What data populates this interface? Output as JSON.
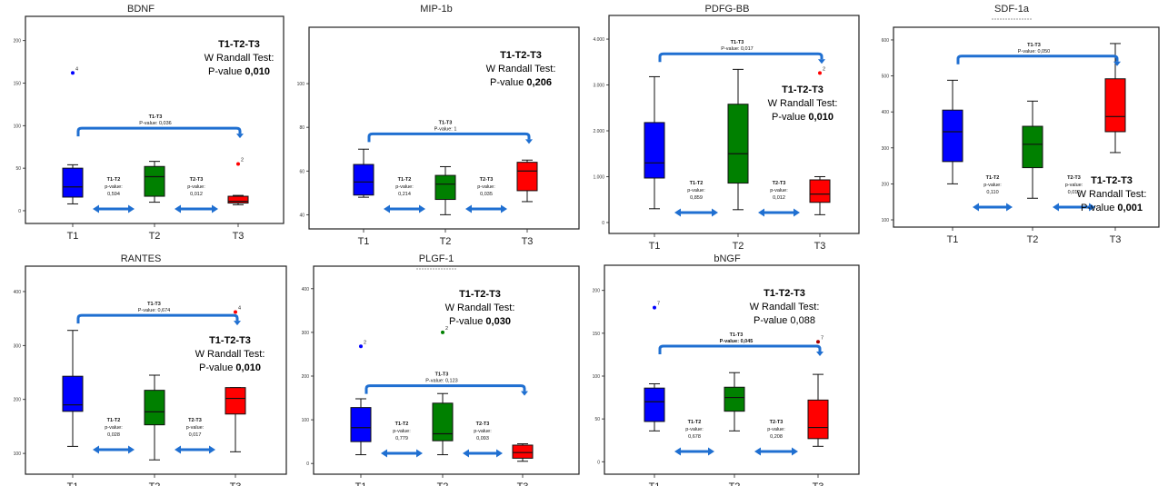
{
  "chart_data": [
    {
      "type": "box",
      "title": "BDNF",
      "title_underline": false,
      "categories": [
        "T1",
        "T2",
        "T3"
      ],
      "ylim": [
        -15,
        205
      ],
      "yticks": [
        0,
        50,
        100,
        150,
        200
      ],
      "series": [
        {
          "category": "T1",
          "color": "#0000ff",
          "min": 8,
          "q1": 16,
          "median": 28,
          "q3": 50,
          "max": 54
        },
        {
          "category": "T2",
          "color": "#008000",
          "min": 10,
          "q1": 17,
          "median": 40,
          "q3": 52,
          "max": 58
        },
        {
          "category": "T3",
          "color": "#ff0000",
          "min": 7,
          "q1": 9,
          "median": 11,
          "q3": 17,
          "max": 18
        }
      ],
      "outliers": [
        {
          "category": "T1",
          "value": 162,
          "label": "4",
          "color": "#0000ff"
        },
        {
          "category": "T3",
          "value": 55,
          "label": "2",
          "color": "#ff0000"
        }
      ],
      "bracket": {
        "label": "T1-T3",
        "pvalue": "P-value: 0,036",
        "bold": false,
        "y": 97
      },
      "pairs": [
        {
          "label": "T1-T2",
          "line1": "p-value:",
          "line2": "0,594"
        },
        {
          "label": "T2-T3",
          "line1": "p-value:",
          "line2": "0,012"
        }
      ],
      "test": {
        "line1": "T1-T2-T3",
        "line2": "W Randall Test:",
        "line3_prefix": "P-value ",
        "line3_value": "0,010",
        "pos": "top-right"
      }
    },
    {
      "type": "box",
      "title": "MIP-1b",
      "title_underline": false,
      "categories": [
        "T1",
        "T2",
        "T3"
      ],
      "ylim": [
        36,
        110
      ],
      "yticks": [
        40,
        60,
        80,
        100
      ],
      "series": [
        {
          "category": "T1",
          "color": "#0000ff",
          "min": 48,
          "q1": 49,
          "median": 55,
          "q3": 63,
          "max": 70
        },
        {
          "category": "T2",
          "color": "#008000",
          "min": 40,
          "q1": 47,
          "median": 54,
          "q3": 58,
          "max": 62
        },
        {
          "category": "T3",
          "color": "#ff0000",
          "min": 46,
          "q1": 51,
          "median": 60,
          "q3": 64,
          "max": 65
        }
      ],
      "outliers": [],
      "bracket": {
        "label": "T1-T3",
        "pvalue": "P-value: 1",
        "bold": false,
        "y": 77
      },
      "pairs": [
        {
          "label": "T1-T2",
          "line1": "p-value:",
          "line2": "0,214"
        },
        {
          "label": "T2-T3",
          "line1": "p-value:",
          "line2": "0,035"
        }
      ],
      "test": {
        "line1": "T1-T2-T3",
        "line2": "W Randall Test:",
        "line3_prefix": "P-value ",
        "line3_value": "0,206",
        "pos": "top-right"
      }
    },
    {
      "type": "box",
      "title": "PDFG-BB",
      "title_underline": false,
      "categories": [
        "T1",
        "T2",
        "T3"
      ],
      "ylim": [
        -100,
        4100
      ],
      "yticks": [
        0,
        1000,
        2000,
        3000,
        4000
      ],
      "ytick_labels": [
        "0",
        "1.000",
        "2.000",
        "3.000",
        "4.000"
      ],
      "series": [
        {
          "category": "T1",
          "color": "#0000ff",
          "min": 300,
          "q1": 970,
          "median": 1300,
          "q3": 2180,
          "max": 3180
        },
        {
          "category": "T2",
          "color": "#008000",
          "min": 280,
          "q1": 860,
          "median": 1500,
          "q3": 2580,
          "max": 3340
        },
        {
          "category": "T3",
          "color": "#ff0000",
          "min": 170,
          "q1": 440,
          "median": 620,
          "q3": 930,
          "max": 1000
        }
      ],
      "outliers": [
        {
          "category": "T3",
          "value": 3260,
          "label": "2",
          "color": "#ff0000"
        }
      ],
      "bracket": {
        "label": "T1-T3",
        "pvalue": "P-value: 0,017",
        "bold": false,
        "y": 3680
      },
      "pairs": [
        {
          "label": "T1-T2",
          "line1": "p-value:",
          "line2": "0,859"
        },
        {
          "label": "T2-T3",
          "line1": "p-value:",
          "line2": "0,012"
        }
      ],
      "test": {
        "line1": "T1-T2-T3",
        "line2": "W Randall Test:",
        "line3_prefix": "P-value ",
        "line3_value": "0,010",
        "pos": "middle-right"
      }
    },
    {
      "type": "box",
      "title": "SDF-1a",
      "title_underline": true,
      "categories": [
        "T1",
        "T2",
        "T3"
      ],
      "ylim": [
        95,
        610
      ],
      "yticks": [
        100,
        200,
        300,
        400,
        500,
        600
      ],
      "series": [
        {
          "category": "T1",
          "color": "#0000ff",
          "min": 200,
          "q1": 262,
          "median": 345,
          "q3": 405,
          "max": 488
        },
        {
          "category": "T2",
          "color": "#008000",
          "min": 160,
          "q1": 245,
          "median": 310,
          "q3": 360,
          "max": 430
        },
        {
          "category": "T3",
          "color": "#ff0000",
          "min": 287,
          "q1": 345,
          "median": 387,
          "q3": 492,
          "max": 590
        }
      ],
      "outliers": [],
      "bracket": {
        "label": "T1-T3",
        "pvalue": "P-value: 0,050",
        "bold": false,
        "y": 555
      },
      "pairs": [
        {
          "label": "T1-T2",
          "line1": "p-value:",
          "line2": "0,110"
        },
        {
          "label": "T2-T3",
          "line1": "p-value:",
          "line2": "0,012"
        }
      ],
      "test": {
        "line1": "T1-T2-T3",
        "line2": "W Randall Test:",
        "line3_prefix": "P-value ",
        "line3_value": "0,001",
        "pos": "bottom-right"
      }
    },
    {
      "type": "box",
      "title": "RANTES",
      "title_underline": false,
      "categories": [
        "T1",
        "T2",
        "T3"
      ],
      "ylim": [
        80,
        410
      ],
      "yticks": [
        100,
        200,
        300,
        400
      ],
      "series": [
        {
          "category": "T1",
          "color": "#0000ff",
          "min": 113,
          "q1": 178,
          "median": 190,
          "q3": 243,
          "max": 328
        },
        {
          "category": "T2",
          "color": "#008000",
          "min": 88,
          "q1": 153,
          "median": 177,
          "q3": 217,
          "max": 245
        },
        {
          "category": "T3",
          "color": "#ff0000",
          "min": 103,
          "q1": 173,
          "median": 202,
          "q3": 222,
          "max": 222
        }
      ],
      "outliers": [
        {
          "category": "T3",
          "value": 362,
          "label": "4",
          "color": "#ff0000"
        }
      ],
      "bracket": {
        "label": "T1-T3",
        "pvalue": "P-value: 0,674",
        "bold": false,
        "y": 356
      },
      "pairs": [
        {
          "label": "T1-T2",
          "line1": "p-value:",
          "line2": "0,028"
        },
        {
          "label": "T2-T3",
          "line1": "p-value:",
          "line2": "0,017"
        }
      ],
      "test": {
        "line1": "T1-T2-T3",
        "line2": "W Randall Test:",
        "line3_prefix": "P-value ",
        "line3_value": "0,010",
        "pos": "middle-right"
      }
    },
    {
      "type": "box",
      "title": "PLGF-1",
      "title_underline": true,
      "categories": [
        "T1",
        "T2",
        "T3"
      ],
      "ylim": [
        -10,
        410
      ],
      "yticks": [
        0,
        100,
        200,
        300,
        400
      ],
      "series": [
        {
          "category": "T1",
          "color": "#0000ff",
          "min": 20,
          "q1": 50,
          "median": 82,
          "q3": 128,
          "max": 148
        },
        {
          "category": "T2",
          "color": "#008000",
          "min": 20,
          "q1": 52,
          "median": 68,
          "q3": 138,
          "max": 160
        },
        {
          "category": "T3",
          "color": "#ff0000",
          "min": 5,
          "q1": 12,
          "median": 25,
          "q3": 42,
          "max": 45
        }
      ],
      "outliers": [
        {
          "category": "T1",
          "value": 268,
          "label": "2",
          "color": "#0000ff"
        },
        {
          "category": "T2",
          "value": 300,
          "label": "2",
          "color": "#008000"
        }
      ],
      "bracket": {
        "label": "T1-T3",
        "pvalue": "P-value: 0,123",
        "bold": false,
        "y": 178
      },
      "pairs": [
        {
          "label": "T1-T2",
          "line1": "p-value:",
          "line2": "0,779"
        },
        {
          "label": "T2-T3",
          "line1": "p-value:",
          "line2": "0,093"
        }
      ],
      "test": {
        "line1": "T1-T2-T3",
        "line2": "W Randall Test:",
        "line3_prefix": "P-value ",
        "line3_value": "0,030",
        "pos": "top-right"
      }
    },
    {
      "type": "box",
      "title": "bNGF",
      "title_underline": false,
      "categories": [
        "T1",
        "T2",
        "T3"
      ],
      "ylim": [
        -5,
        205
      ],
      "yticks": [
        0,
        50,
        100,
        150,
        200
      ],
      "series": [
        {
          "category": "T1",
          "color": "#0000ff",
          "min": 36,
          "q1": 47,
          "median": 70,
          "q3": 86,
          "max": 91
        },
        {
          "category": "T2",
          "color": "#008000",
          "min": 36,
          "q1": 59,
          "median": 75,
          "q3": 87,
          "max": 104
        },
        {
          "category": "T3",
          "color": "#ff0000",
          "min": 18,
          "q1": 27,
          "median": 40,
          "q3": 72,
          "max": 102
        }
      ],
      "outliers": [
        {
          "category": "T1",
          "value": 180,
          "label": "7",
          "color": "#0000ff"
        },
        {
          "category": "T3",
          "value": 140,
          "label": "7",
          "color": "#aa0000"
        }
      ],
      "bracket": {
        "label": "T1-T3",
        "pvalue": "P-value: 0,045",
        "bold": true,
        "y": 135
      },
      "pairs": [
        {
          "label": "T1-T2",
          "line1": "p-value:",
          "line2": "0,678"
        },
        {
          "label": "T2-T3",
          "line1": "p-value:",
          "line2": "0,208"
        }
      ],
      "test": {
        "line1": "T1-T2-T3",
        "line2": "W Randall Test:",
        "line3_prefix": "P-value ",
        "line3_value": "0,088",
        "pos": "top-right",
        "value_bold": false
      }
    }
  ]
}
